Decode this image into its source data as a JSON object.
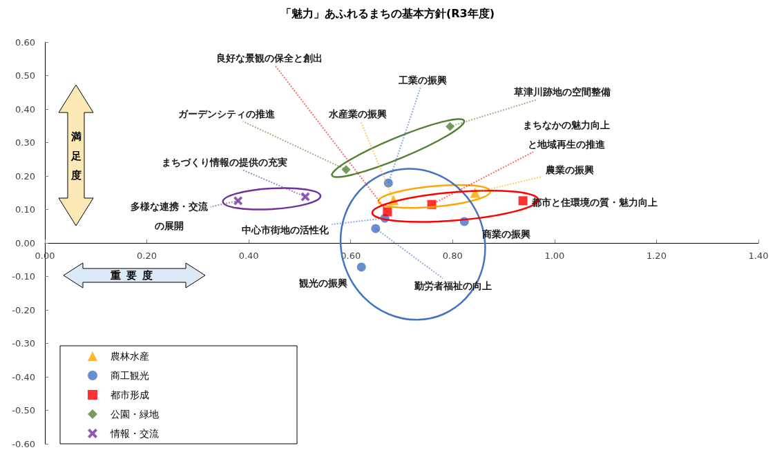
{
  "chart_data": {
    "type": "scatter",
    "title": "「魅力」あふれるまちの基本方針(R3年度)",
    "xlabel": "重要度",
    "ylabel": "満足度",
    "xlim": [
      0,
      1.4
    ],
    "xticks": [
      {
        "value": 0,
        "label": "0.00"
      },
      {
        "value": 0.2,
        "label": "0.20"
      },
      {
        "value": 0.4,
        "label": "0.40"
      },
      {
        "value": 0.6,
        "label": "0.60"
      },
      {
        "value": 0.8,
        "label": "0.80"
      },
      {
        "value": 1,
        "label": "1.00"
      },
      {
        "value": 1.2,
        "label": "1.20"
      },
      {
        "value": 1.4,
        "label": "1.40"
      }
    ],
    "ylim": [
      -0.6,
      0.6
    ],
    "yticks": [
      {
        "value": -0.6,
        "label": "-0.60"
      },
      {
        "value": -0.5,
        "label": "-0.50"
      },
      {
        "value": -0.4,
        "label": "-0.40"
      },
      {
        "value": -0.3,
        "label": "-0.30"
      },
      {
        "value": -0.2,
        "label": "-0.20"
      },
      {
        "value": -0.1,
        "label": "-0.10"
      },
      {
        "value": 0,
        "label": "0.00"
      },
      {
        "value": 0.1,
        "label": "0.10"
      },
      {
        "value": 0.2,
        "label": "0.20"
      },
      {
        "value": 0.3,
        "label": "0.30"
      },
      {
        "value": 0.4,
        "label": "0.40"
      },
      {
        "value": 0.5,
        "label": "0.50"
      },
      {
        "value": 0.6,
        "label": "0.60"
      }
    ],
    "legend": "bottom left",
    "series": [
      {
        "name": "農林水産",
        "color": "#ffa500",
        "marker": "triangle",
        "x": [
          0.684,
          0.844
        ],
        "values": [
          0.128,
          0.15
        ]
      },
      {
        "name": "商工観光",
        "color": "#4472c4",
        "marker": "circle",
        "x": [
          0.674,
          0.667,
          0.649,
          0.823,
          0.621
        ],
        "values": [
          0.179,
          0.074,
          0.043,
          0.064,
          -0.072
        ]
      },
      {
        "name": "都市形成",
        "color": "#ff0000",
        "marker": "square",
        "x": [
          0.672,
          0.759,
          0.938
        ],
        "values": [
          0.093,
          0.115,
          0.126
        ]
      },
      {
        "name": "公園・緑地",
        "color": "#548235",
        "marker": "diamond",
        "x": [
          0.591,
          0.795
        ],
        "values": [
          0.219,
          0.348
        ]
      },
      {
        "name": "情報・交流",
        "color": "#7030a0",
        "marker": "cross",
        "x": [
          0.379,
          0.511
        ],
        "values": [
          0.126,
          0.138
        ]
      }
    ],
    "annotations": [
      {
        "text": "良好な景観の保全と創出",
        "x": 0.672,
        "y": 0.093
      },
      {
        "text": "工業の振興",
        "x": 0.674,
        "y": 0.179
      },
      {
        "text": "草津川跡地の空間整備",
        "x": 0.795,
        "y": 0.348
      },
      {
        "text": "ガーデンシティの推進",
        "x": 0.591,
        "y": 0.219
      },
      {
        "text": "水産業の振興",
        "x": 0.684,
        "y": 0.128
      },
      {
        "text": "まちなかの魅力向上と地域再生の推進",
        "x": 0.759,
        "y": 0.115
      },
      {
        "text": "農業の振興",
        "x": 0.844,
        "y": 0.15
      },
      {
        "text": "都市と住環境の質・魅力向上",
        "x": 0.938,
        "y": 0.126
      },
      {
        "text": "まちづくり情報の提供の充実",
        "x": 0.511,
        "y": 0.138
      },
      {
        "text": "多様な連携・交流の展開",
        "x": 0.379,
        "y": 0.126
      },
      {
        "text": "中心市街地の活性化",
        "x": 0.667,
        "y": 0.074
      },
      {
        "text": "勤労者福祉の向上",
        "x": 0.649,
        "y": 0.043
      },
      {
        "text": "商業の振興",
        "x": 0.823,
        "y": 0.064
      },
      {
        "text": "観光の振興",
        "x": 0.621,
        "y": -0.072
      }
    ]
  }
}
